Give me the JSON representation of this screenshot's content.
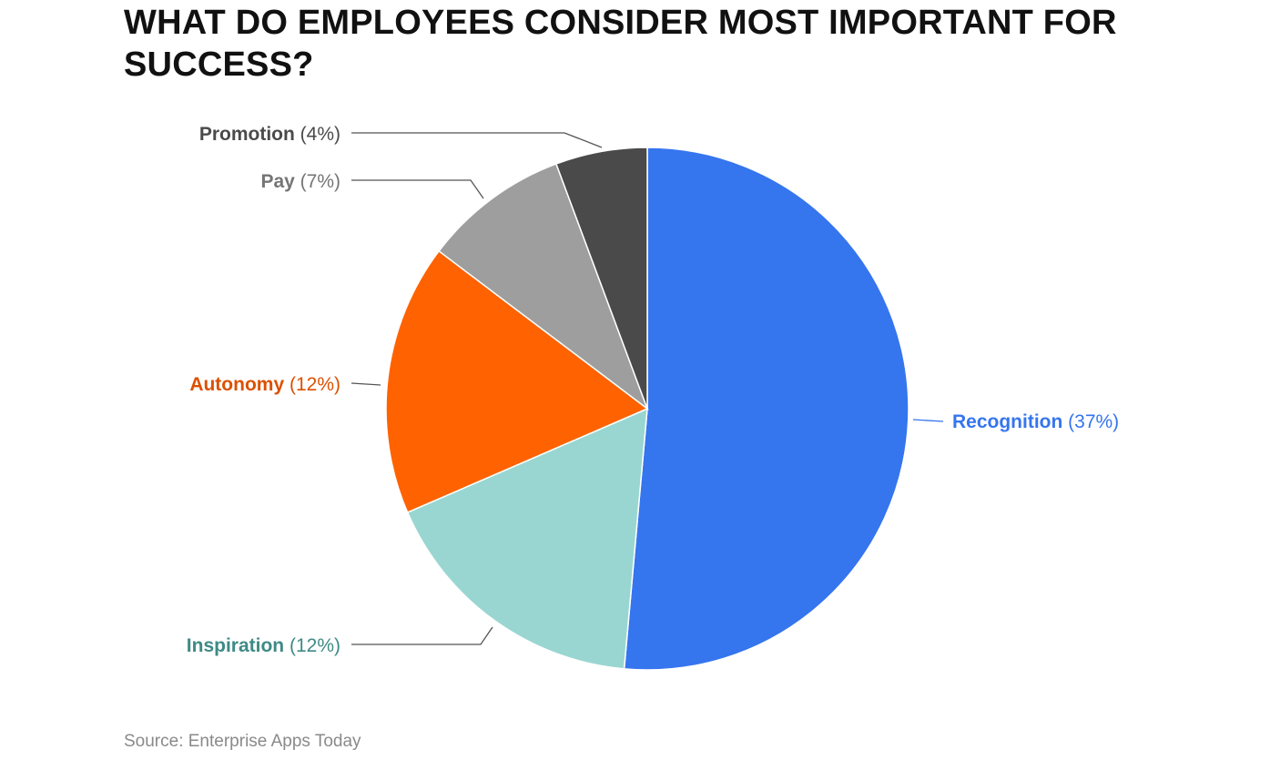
{
  "title": "WHAT DO EMPLOYEES CONSIDER MOST IMPORTANT FOR SUCCESS?",
  "source": "Source: Enterprise Apps Today",
  "chart_data": {
    "type": "pie",
    "title": "WHAT DO EMPLOYEES CONSIDER MOST IMPORTANT FOR SUCCESS?",
    "legend": "none",
    "slices": [
      {
        "name": "Recognition",
        "label": "(37%)",
        "value": 37,
        "color": "#3575EE",
        "label_color": "#3575EE",
        "value_color": "#3575EE"
      },
      {
        "name": "Inspiration",
        "label": "(12%)",
        "value": 12,
        "color": "#9AD6D1",
        "label_color": "#3E8A85",
        "value_color": "#3E8A85"
      },
      {
        "name": "Autonomy",
        "label": "(12%)",
        "value": 12,
        "color": "#FF6200",
        "label_color": "#DC5000",
        "value_color": "#DC5000"
      },
      {
        "name": "Pay",
        "label": "(7%)",
        "value": 7,
        "color": "#9E9E9E",
        "label_color": "#757575",
        "value_color": "#757575"
      },
      {
        "name": "Promotion",
        "label": "(4%)",
        "value": 4,
        "color": "#4A4A4A",
        "label_color": "#4A4A4A",
        "value_color": "#4A4A4A"
      }
    ]
  }
}
